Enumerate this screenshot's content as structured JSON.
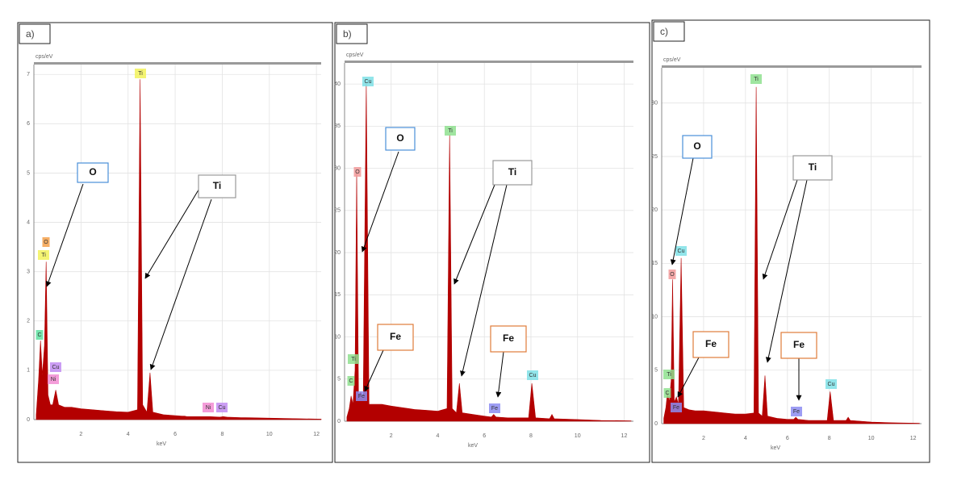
{
  "chart_data": [
    {
      "type": "area",
      "panel_label": "a)",
      "y_label": "cps/eV",
      "x_label": "keV",
      "xlim": [
        0,
        12.2
      ],
      "ylim": [
        0,
        7.2
      ],
      "xticks": [
        2,
        4,
        6,
        8,
        10,
        12
      ],
      "yticks": [
        0,
        1,
        2,
        3,
        4,
        5,
        6,
        7
      ],
      "grid": true,
      "color": "#b30000",
      "x": [
        0.1,
        0.2,
        0.28,
        0.36,
        0.45,
        0.52,
        0.6,
        0.7,
        0.8,
        0.93,
        1.05,
        1.3,
        1.6,
        2,
        2.5,
        3,
        3.5,
        4,
        4.4,
        4.51,
        4.62,
        4.8,
        4.93,
        5.05,
        5.5,
        6,
        6.3,
        6.4,
        6.5,
        7,
        7.47,
        7.9,
        8.04,
        8.2,
        8.8,
        8.9,
        9,
        10,
        11,
        12.2
      ],
      "values": [
        0.1,
        0.8,
        1.6,
        0.9,
        1.5,
        3.2,
        0.5,
        0.3,
        0.3,
        0.6,
        0.3,
        0.25,
        0.25,
        0.22,
        0.2,
        0.18,
        0.16,
        0.15,
        0.2,
        6.9,
        0.3,
        0.15,
        0.95,
        0.15,
        0.1,
        0.08,
        0.07,
        0.07,
        0.06,
        0.06,
        0.06,
        0.05,
        0.06,
        0.05,
        0.04,
        0.04,
        0.04,
        0.03,
        0.02,
        0.01
      ],
      "annotations": [
        {
          "text": "O",
          "border": "#4a8fd8"
        },
        {
          "text": "Ti",
          "border": "#999999"
        }
      ],
      "peak_tags": [
        {
          "text": "O",
          "color": "#f5a04a"
        },
        {
          "text": "Ti",
          "color": "#f2f25a"
        },
        {
          "text": "Ti",
          "color": "#f2f25a"
        },
        {
          "text": "C",
          "color": "#5de0a0"
        },
        {
          "text": "Cu",
          "color": "#c28cf2"
        },
        {
          "text": "Ni",
          "color": "#f28cd2"
        },
        {
          "text": "Ni",
          "color": "#f28cd2"
        },
        {
          "text": "Cu",
          "color": "#c28cf2"
        }
      ]
    },
    {
      "type": "area",
      "panel_label": "b)",
      "y_label": "cps/eV",
      "x_label": "keV",
      "xlim": [
        0,
        12.4
      ],
      "ylim": [
        0,
        42.5
      ],
      "xticks": [
        2,
        4,
        6,
        8,
        10,
        12
      ],
      "yticks": [
        0,
        5,
        10,
        15,
        20,
        25,
        30,
        35,
        40
      ],
      "grid": true,
      "color": "#b30000",
      "x": [
        0.1,
        0.2,
        0.28,
        0.36,
        0.45,
        0.52,
        0.6,
        0.7,
        0.8,
        0.93,
        1.05,
        1.3,
        1.6,
        2,
        2.5,
        3,
        3.5,
        4,
        4.4,
        4.51,
        4.62,
        4.8,
        4.93,
        5.05,
        5.5,
        6,
        6.3,
        6.4,
        6.5,
        7,
        7.47,
        7.9,
        8.04,
        8.2,
        8.8,
        8.9,
        9,
        10,
        11,
        12.3
      ],
      "values": [
        0.5,
        1.5,
        3,
        2,
        6,
        29.5,
        3,
        3.5,
        2.5,
        40,
        2,
        2,
        2,
        1.8,
        1.6,
        1.4,
        1.3,
        1.2,
        1.5,
        34,
        1.5,
        1,
        4.5,
        1,
        0.8,
        0.6,
        0.5,
        0.8,
        0.5,
        0.4,
        0.4,
        0.4,
        4.5,
        0.4,
        0.3,
        0.8,
        0.3,
        0.2,
        0.1,
        0.05
      ],
      "annotations": [
        {
          "text": "O",
          "border": "#4a8fd8"
        },
        {
          "text": "Ti",
          "border": "#999999"
        },
        {
          "text": "Fe",
          "border": "#e07b39"
        },
        {
          "text": "Fe",
          "border": "#e07b39"
        }
      ],
      "peak_tags": [
        {
          "text": "Cu",
          "color": "#7fe0e6"
        },
        {
          "text": "Ti",
          "color": "#8fe08f"
        },
        {
          "text": "O",
          "color": "#f29a9a"
        },
        {
          "text": "Ti",
          "color": "#8fe08f"
        },
        {
          "text": "C",
          "color": "#8fe08f"
        },
        {
          "text": "Fe",
          "color": "#8c8cf2"
        },
        {
          "text": "Fe",
          "color": "#8c8cf2"
        },
        {
          "text": "Cu",
          "color": "#7fe0e6"
        }
      ]
    },
    {
      "type": "area",
      "panel_label": "c)",
      "y_label": "cps/eV",
      "x_label": "keV",
      "xlim": [
        0,
        12.4
      ],
      "ylim": [
        0,
        33.3
      ],
      "xticks": [
        2,
        4,
        6,
        8,
        10,
        12
      ],
      "yticks": [
        0,
        5,
        10,
        15,
        20,
        25,
        30
      ],
      "grid": true,
      "color": "#b30000",
      "x": [
        0.1,
        0.2,
        0.28,
        0.36,
        0.45,
        0.52,
        0.6,
        0.7,
        0.8,
        0.93,
        1.05,
        1.3,
        1.6,
        2,
        2.5,
        3,
        3.5,
        4,
        4.4,
        4.51,
        4.62,
        4.8,
        4.93,
        5.05,
        5.5,
        6,
        6.3,
        6.4,
        6.5,
        7,
        7.47,
        7.9,
        8.04,
        8.2,
        8.8,
        8.9,
        9,
        10,
        11,
        12.3
      ],
      "values": [
        0.5,
        1.5,
        3,
        2,
        4,
        13.5,
        2,
        2.5,
        1.8,
        15.5,
        1.5,
        1.3,
        1.2,
        1.2,
        1.1,
        1,
        0.9,
        0.9,
        1,
        31.5,
        1,
        0.7,
        4.5,
        0.7,
        0.5,
        0.4,
        0.4,
        0.6,
        0.4,
        0.3,
        0.3,
        0.3,
        3,
        0.3,
        0.3,
        0.6,
        0.3,
        0.15,
        0.08,
        0.04
      ],
      "annotations": [
        {
          "text": "O",
          "border": "#4a8fd8"
        },
        {
          "text": "Ti",
          "border": "#999999"
        },
        {
          "text": "Fe",
          "border": "#e07b39"
        },
        {
          "text": "Fe",
          "border": "#e07b39"
        }
      ],
      "peak_tags": [
        {
          "text": "Ti",
          "color": "#8fe08f"
        },
        {
          "text": "Cu",
          "color": "#7fe0e6"
        },
        {
          "text": "O",
          "color": "#f29a9a"
        },
        {
          "text": "Ti",
          "color": "#8fe08f"
        },
        {
          "text": "C",
          "color": "#8fe08f"
        },
        {
          "text": "Fe",
          "color": "#8c8cf2"
        },
        {
          "text": "Fe",
          "color": "#8c8cf2"
        },
        {
          "text": "Cu",
          "color": "#7fe0e6"
        }
      ]
    }
  ]
}
